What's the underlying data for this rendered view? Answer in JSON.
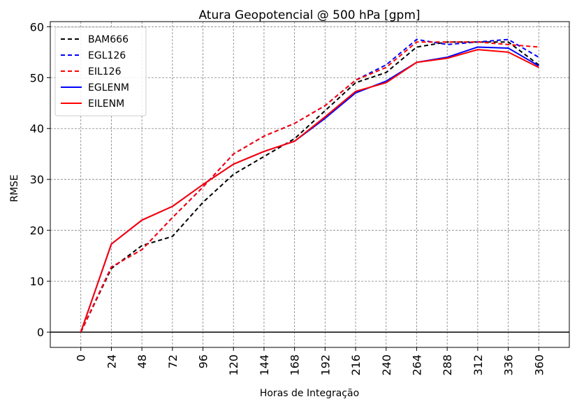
{
  "chart_data": {
    "type": "line",
    "title": "Atura Geopotencial @ 500 hPa [gpm]",
    "xlabel": "Horas de Integração",
    "ylabel": "RMSE",
    "x": [
      0,
      24,
      48,
      72,
      96,
      120,
      144,
      168,
      192,
      216,
      240,
      264,
      288,
      312,
      336,
      360
    ],
    "xticks": [
      "0",
      "24",
      "48",
      "72",
      "96",
      "120",
      "144",
      "168",
      "192",
      "216",
      "240",
      "264",
      "288",
      "312",
      "336",
      "360"
    ],
    "yticks": [
      "0",
      "10",
      "20",
      "30",
      "40",
      "50",
      "60"
    ],
    "ylim": [
      -3,
      61
    ],
    "grid": true,
    "legend_position": "upper-left",
    "series": [
      {
        "name": "BAM666",
        "color": "#000000",
        "style": "dashed",
        "values": [
          0,
          12.5,
          17,
          18.8,
          25.5,
          31,
          34.5,
          38,
          43.5,
          49,
          51,
          56,
          57,
          57,
          57,
          52.5
        ]
      },
      {
        "name": "EGL126",
        "color": "#0000ff",
        "style": "dashed",
        "values": [
          0,
          12.8,
          16.2,
          22.5,
          28.5,
          35,
          38.5,
          41,
          44.5,
          49.5,
          52.5,
          57.5,
          56.5,
          57,
          57.5,
          54
        ]
      },
      {
        "name": "EIL126",
        "color": "#ff0000",
        "style": "dashed",
        "values": [
          0,
          12.8,
          16.2,
          22.5,
          28.5,
          35,
          38.5,
          41,
          44.5,
          49.5,
          52,
          57,
          57,
          57,
          56.5,
          56
        ]
      },
      {
        "name": "EGLENM",
        "color": "#0000ff",
        "style": "solid",
        "values": [
          0,
          17.3,
          22,
          24.7,
          29,
          33,
          35.5,
          37.5,
          42,
          47,
          49.3,
          53,
          54,
          56,
          55.8,
          52.3
        ]
      },
      {
        "name": "EILENM",
        "color": "#ff0000",
        "style": "solid",
        "values": [
          0,
          17.3,
          22,
          24.7,
          29,
          33,
          35.5,
          37.5,
          42.3,
          47.3,
          49,
          53,
          53.8,
          55.5,
          55,
          52
        ]
      }
    ]
  }
}
